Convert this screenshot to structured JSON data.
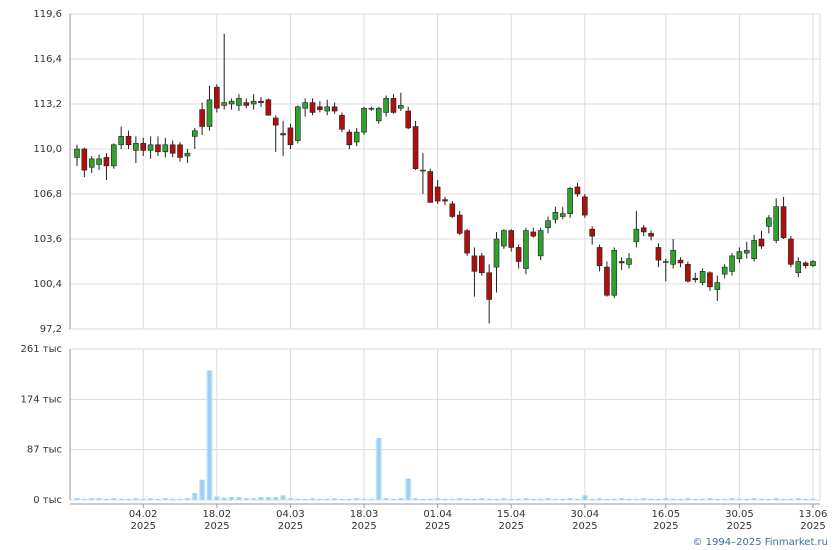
{
  "credit": "© 1994–2025 Finmarket.ru",
  "chart_data": [
    {
      "type": "candlestick",
      "up_color": "#2ea12e",
      "down_color": "#b00f0f",
      "ylim": [
        97.2,
        119.6
      ],
      "yticks": [
        {
          "value": 97.2,
          "label": "97,2"
        },
        {
          "value": 100.4,
          "label": "100,4"
        },
        {
          "value": 103.6,
          "label": "103,6"
        },
        {
          "value": 106.8,
          "label": "106,8"
        },
        {
          "value": 110.0,
          "label": "110,0"
        },
        {
          "value": 113.2,
          "label": "113,2"
        },
        {
          "value": 116.4,
          "label": "116,4"
        },
        {
          "value": 119.6,
          "label": "119,6"
        }
      ],
      "grid": true,
      "categories": [
        null,
        null,
        null,
        null,
        null,
        null,
        null,
        null,
        null,
        {
          "day": "04.02",
          "year": "2025"
        },
        null,
        null,
        null,
        null,
        null,
        null,
        null,
        null,
        null,
        {
          "day": "18.02",
          "year": "2025"
        },
        null,
        null,
        null,
        null,
        null,
        null,
        null,
        null,
        null,
        {
          "day": "04.03",
          "year": "2025"
        },
        null,
        null,
        null,
        null,
        null,
        null,
        null,
        null,
        null,
        {
          "day": "18.03",
          "year": "2025"
        },
        null,
        null,
        null,
        null,
        null,
        null,
        null,
        null,
        null,
        {
          "day": "01.04",
          "year": "2025"
        },
        null,
        null,
        null,
        null,
        null,
        null,
        null,
        null,
        null,
        {
          "day": "15.04",
          "year": "2025"
        },
        null,
        null,
        null,
        null,
        null,
        null,
        null,
        null,
        null,
        {
          "day": "30.04",
          "year": "2025"
        },
        null,
        null,
        null,
        null,
        null,
        null,
        null,
        null,
        null,
        null,
        {
          "day": "16.05",
          "year": "2025"
        },
        null,
        null,
        null,
        null,
        null,
        null,
        null,
        null,
        null,
        {
          "day": "30.05",
          "year": "2025"
        },
        null,
        null,
        null,
        null,
        null,
        null,
        null,
        null,
        null,
        {
          "day": "13.06",
          "year": "2025"
        }
      ],
      "open": [
        109.4,
        110.0,
        108.7,
        108.9,
        109.4,
        108.8,
        110.3,
        110.9,
        109.9,
        110.4,
        109.9,
        110.3,
        109.8,
        110.3,
        110.3,
        109.5,
        110.9,
        112.8,
        111.6,
        114.4,
        113.1,
        113.2,
        113.1,
        113.3,
        113.2,
        113.4,
        113.5,
        112.2,
        111.1,
        111.5,
        110.6,
        112.9,
        113.3,
        113.0,
        112.7,
        113.0,
        112.4,
        111.2,
        110.5,
        111.2,
        112.9,
        112.0,
        112.6,
        113.6,
        112.9,
        112.7,
        111.6,
        108.5,
        108.4,
        107.3,
        106.4,
        106.1,
        105.3,
        104.2,
        102.4,
        102.4,
        101.2,
        101.6,
        103.1,
        104.2,
        103.0,
        101.5,
        104.1,
        102.4,
        104.4,
        105.0,
        105.2,
        105.4,
        107.3,
        106.6,
        104.3,
        103.0,
        101.6,
        99.6,
        102.0,
        101.8,
        103.4,
        104.4,
        104.0,
        103.0,
        102.0,
        101.8,
        102.1,
        101.8,
        100.8,
        100.5,
        101.2,
        100.0,
        101.1,
        101.3,
        102.2,
        102.6,
        102.2,
        103.6,
        104.5,
        103.5,
        105.9,
        103.6,
        101.2,
        101.9,
        101.7
      ],
      "high": [
        110.3,
        110.1,
        109.5,
        109.6,
        109.7,
        110.4,
        111.6,
        111.3,
        110.9,
        110.8,
        110.9,
        110.9,
        110.8,
        110.6,
        110.5,
        110.0,
        111.5,
        113.3,
        114.5,
        114.6,
        118.2,
        113.6,
        113.9,
        113.6,
        113.9,
        113.7,
        113.6,
        112.4,
        112.0,
        111.8,
        113.1,
        113.6,
        113.6,
        113.4,
        113.5,
        113.3,
        112.6,
        111.4,
        111.5,
        113.0,
        113.0,
        113.0,
        113.8,
        113.9,
        114.0,
        113.0,
        112.0,
        109.7,
        108.6,
        107.8,
        106.6,
        106.3,
        105.6,
        104.3,
        103.0,
        102.6,
        101.8,
        104.1,
        104.3,
        104.3,
        103.2,
        104.4,
        104.4,
        104.4,
        105.2,
        105.9,
        105.9,
        107.3,
        107.6,
        106.8,
        104.5,
        103.2,
        102.0,
        103.0,
        102.3,
        102.6,
        105.6,
        104.6,
        104.2,
        103.3,
        102.2,
        103.6,
        102.3,
        102.0,
        101.2,
        101.5,
        101.3,
        101.0,
        101.8,
        102.6,
        103.0,
        103.4,
        103.9,
        104.2,
        105.3,
        106.5,
        106.6,
        103.8,
        102.3,
        102.0,
        102.1
      ],
      "low": [
        108.8,
        108.0,
        108.3,
        108.5,
        107.8,
        108.6,
        110.0,
        110.0,
        109.0,
        109.5,
        109.3,
        109.5,
        109.4,
        109.4,
        109.1,
        109.0,
        110.0,
        111.0,
        111.3,
        112.6,
        112.8,
        112.8,
        112.7,
        112.9,
        112.8,
        113.0,
        112.4,
        109.8,
        109.5,
        110.0,
        110.4,
        112.3,
        112.4,
        112.6,
        112.4,
        112.5,
        111.2,
        110.0,
        110.2,
        111.0,
        112.7,
        111.8,
        112.3,
        112.5,
        112.7,
        111.4,
        108.5,
        106.8,
        106.2,
        106.1,
        106.0,
        105.1,
        103.9,
        102.4,
        99.5,
        101.0,
        97.6,
        99.8,
        102.9,
        102.7,
        101.5,
        101.1,
        103.7,
        102.1,
        104.0,
        104.7,
        105.0,
        105.1,
        106.6,
        105.1,
        103.2,
        101.3,
        99.5,
        99.4,
        101.4,
        101.5,
        103.0,
        103.8,
        103.5,
        101.6,
        100.6,
        101.5,
        101.6,
        100.5,
        100.5,
        100.3,
        99.9,
        99.2,
        100.8,
        101.0,
        101.9,
        102.2,
        102.0,
        102.9,
        104.0,
        103.3,
        103.6,
        101.6,
        100.9,
        101.5,
        101.6
      ],
      "close": [
        110.0,
        108.5,
        109.3,
        109.3,
        108.8,
        110.3,
        110.9,
        110.3,
        110.4,
        109.9,
        110.3,
        109.8,
        110.3,
        109.7,
        109.4,
        109.7,
        111.3,
        111.6,
        113.5,
        112.9,
        113.3,
        113.4,
        113.6,
        113.1,
        113.4,
        113.3,
        112.4,
        111.7,
        111.0,
        110.3,
        113.0,
        113.3,
        112.6,
        112.8,
        113.0,
        112.7,
        111.4,
        110.3,
        111.2,
        112.9,
        112.9,
        112.9,
        113.6,
        112.6,
        113.1,
        111.5,
        108.6,
        108.5,
        106.2,
        106.3,
        106.3,
        105.2,
        104.0,
        102.6,
        101.3,
        101.2,
        99.3,
        103.6,
        104.2,
        103.0,
        102.0,
        104.2,
        103.8,
        104.2,
        104.9,
        105.5,
        105.4,
        107.2,
        106.8,
        105.3,
        103.8,
        101.7,
        99.6,
        102.8,
        101.9,
        102.2,
        104.3,
        104.1,
        103.8,
        102.1,
        102.0,
        102.8,
        101.9,
        100.6,
        100.7,
        101.3,
        100.2,
        100.5,
        101.6,
        102.4,
        102.7,
        102.8,
        103.5,
        103.1,
        105.1,
        105.9,
        103.7,
        101.8,
        102.0,
        101.7,
        102.0
      ]
    },
    {
      "type": "bar",
      "color": "#8fc8f2",
      "ylim": [
        0,
        261
      ],
      "yticks": [
        {
          "value": 0,
          "label": "0 тыс"
        },
        {
          "value": 87,
          "label": "87 тыс"
        },
        {
          "value": 174,
          "label": "174 тыс"
        },
        {
          "value": 261,
          "label": "261 тыс"
        }
      ],
      "grid": true,
      "values": [
        3,
        2,
        3,
        3,
        2,
        3,
        2,
        2,
        3,
        2,
        3,
        2,
        3,
        2,
        2,
        3,
        12,
        35,
        224,
        6,
        4,
        5,
        5,
        3,
        3,
        5,
        5,
        5,
        8,
        3,
        2,
        2,
        3,
        2,
        2,
        3,
        2,
        2,
        3,
        2,
        2,
        107,
        3,
        2,
        3,
        37,
        3,
        2,
        2,
        3,
        2,
        2,
        3,
        2,
        2,
        3,
        2,
        2,
        3,
        2,
        2,
        3,
        2,
        2,
        3,
        2,
        2,
        3,
        2,
        8,
        2,
        3,
        2,
        2,
        3,
        2,
        2,
        3,
        2,
        2,
        3,
        2,
        2,
        3,
        2,
        2,
        3,
        2,
        2,
        3,
        2,
        2,
        3,
        2,
        2,
        3,
        2,
        2,
        3,
        2,
        2
      ]
    }
  ]
}
